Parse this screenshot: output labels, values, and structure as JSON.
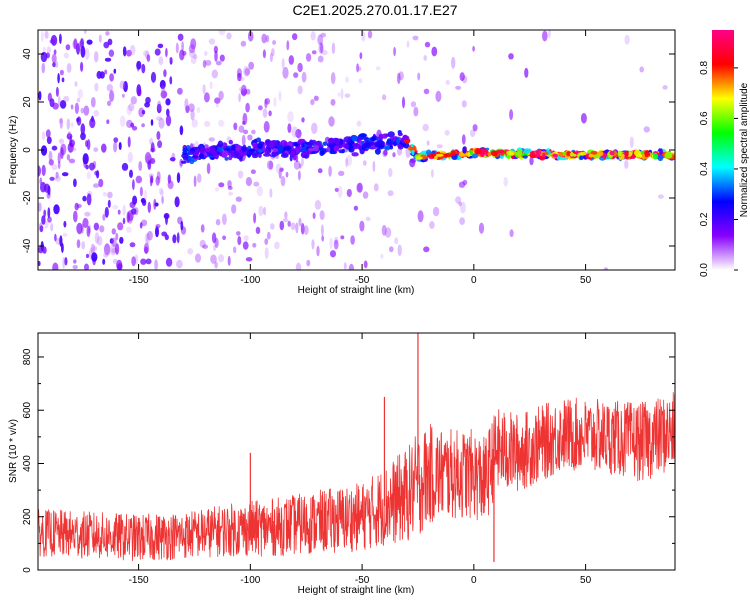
{
  "title": "C2E1.2025.270.01.17.E27",
  "chart_data": [
    {
      "type": "heatmap",
      "title": "C2E1.2025.270.01.17.E27",
      "xlabel": "Height of straight line (km)",
      "ylabel": "Frequency (Hz)",
      "xlim": [
        -195,
        90
      ],
      "ylim": [
        -50,
        50
      ],
      "xticks": [
        -150,
        -100,
        -50,
        0,
        50
      ],
      "yticks": [
        -40,
        -20,
        0,
        20,
        40
      ],
      "colorbar": {
        "label": "Normalized spectral amplitude",
        "range": [
          0,
          0.95
        ],
        "ticks": [
          0.0,
          0.2,
          0.4,
          0.6,
          0.8
        ],
        "stops": [
          "#ffffff",
          "#8800ff",
          "#0000ff",
          "#00ffff",
          "#00ff00",
          "#ffff00",
          "#ff0000",
          "#ff0088"
        ]
      },
      "ridge": {
        "x": [
          -130,
          -100,
          -70,
          -45,
          -30,
          -25,
          0,
          30,
          60,
          90
        ],
        "y": [
          -2,
          0,
          1,
          3,
          4,
          -3,
          -1,
          -2,
          -2,
          -2
        ]
      }
    },
    {
      "type": "line",
      "xlabel": "Height of straight line (km)",
      "ylabel": "SNR (10 * v/v)",
      "xlim": [
        -195,
        90
      ],
      "ylim": [
        0,
        890
      ],
      "xticks": [
        -150,
        -100,
        -50,
        0,
        50
      ],
      "yticks": [
        0,
        200,
        400,
        600,
        800
      ],
      "color": "#ee3333",
      "series": [
        {
          "name": "SNR",
          "x": [
            -195,
            -170,
            -150,
            -130,
            -110,
            -90,
            -70,
            -50,
            -40,
            -30,
            -25,
            -20,
            -10,
            0,
            5,
            10,
            20,
            40,
            60,
            75,
            90
          ],
          "y": [
            140,
            130,
            120,
            130,
            150,
            160,
            180,
            200,
            240,
            280,
            320,
            360,
            360,
            360,
            330,
            450,
            440,
            510,
            500,
            480,
            520
          ],
          "spread": [
            90,
            90,
            90,
            90,
            100,
            110,
            120,
            130,
            150,
            180,
            200,
            190,
            170,
            170,
            170,
            160,
            150,
            140,
            140,
            150,
            150
          ]
        }
      ],
      "spikes": [
        {
          "x": -25,
          "y": 890
        },
        {
          "x": -40,
          "y": 650
        },
        {
          "x": -100,
          "y": 440
        },
        {
          "x": 9,
          "y": 30
        }
      ]
    }
  ]
}
